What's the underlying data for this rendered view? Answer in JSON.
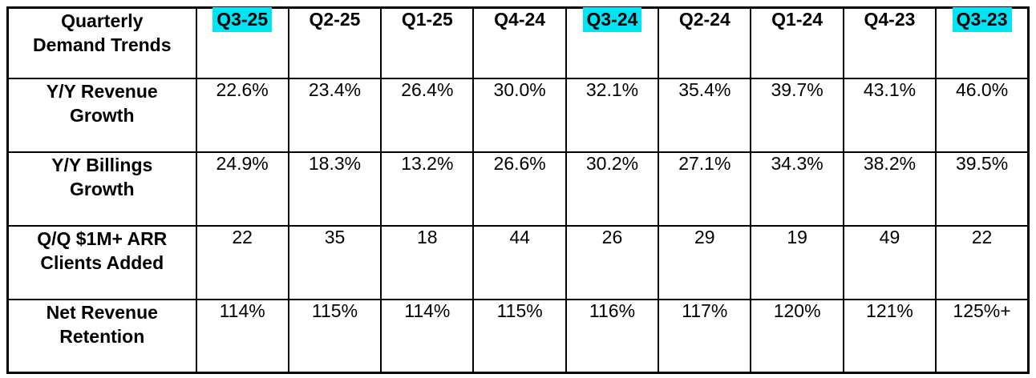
{
  "page": {
    "background": "#ffffff"
  },
  "highlight_color": "#00e4f4",
  "table": {
    "corner_label": "Quarterly\nDemand Trends",
    "columns": [
      {
        "label": "Q3-25",
        "highlighted": true
      },
      {
        "label": "Q2-25",
        "highlighted": false
      },
      {
        "label": "Q1-25",
        "highlighted": false
      },
      {
        "label": "Q4-24",
        "highlighted": false
      },
      {
        "label": "Q3-24",
        "highlighted": true
      },
      {
        "label": "Q2-24",
        "highlighted": false
      },
      {
        "label": "Q1-24",
        "highlighted": false
      },
      {
        "label": "Q4-23",
        "highlighted": false
      },
      {
        "label": "Q3-23",
        "highlighted": true
      }
    ],
    "rows": [
      {
        "label": "Y/Y Revenue\nGrowth",
        "values": [
          "22.6%",
          "23.4%",
          "26.4%",
          "30.0%",
          "32.1%",
          "35.4%",
          "39.7%",
          "43.1%",
          "46.0%"
        ]
      },
      {
        "label": "Y/Y Billings\nGrowth",
        "values": [
          "24.9%",
          "18.3%",
          "13.2%",
          "26.6%",
          "30.2%",
          "27.1%",
          "34.3%",
          "38.2%",
          "39.5%"
        ]
      },
      {
        "label": "Q/Q $1M+ ARR\nClients Added",
        "values": [
          "22",
          "35",
          "18",
          "44",
          "26",
          "29",
          "19",
          "49",
          "22"
        ]
      },
      {
        "label": "Net Revenue\nRetention",
        "values": [
          "114%",
          "115%",
          "114%",
          "115%",
          "116%",
          "117%",
          "120%",
          "121%",
          "125%+"
        ]
      }
    ]
  },
  "chart_data": {
    "type": "table",
    "title": "Quarterly Demand Trends",
    "categories": [
      "Q3-25",
      "Q2-25",
      "Q1-25",
      "Q4-24",
      "Q3-24",
      "Q2-24",
      "Q1-24",
      "Q4-23",
      "Q3-23"
    ],
    "highlighted_categories": [
      "Q3-25",
      "Q3-24",
      "Q3-23"
    ],
    "series": [
      {
        "name": "Y/Y Revenue Growth",
        "values": [
          "22.6%",
          "23.4%",
          "26.4%",
          "30.0%",
          "32.1%",
          "35.4%",
          "39.7%",
          "43.1%",
          "46.0%"
        ]
      },
      {
        "name": "Y/Y Billings Growth",
        "values": [
          "24.9%",
          "18.3%",
          "13.2%",
          "26.6%",
          "30.2%",
          "27.1%",
          "34.3%",
          "38.2%",
          "39.5%"
        ]
      },
      {
        "name": "Q/Q $1M+ ARR Clients Added",
        "values": [
          22,
          35,
          18,
          44,
          26,
          29,
          19,
          49,
          22
        ]
      },
      {
        "name": "Net Revenue Retention",
        "values": [
          "114%",
          "115%",
          "114%",
          "115%",
          "116%",
          "117%",
          "120%",
          "121%",
          "125%+"
        ]
      }
    ],
    "layout": {
      "grid": "all-borders",
      "header_highlight_color": "#00e4f4"
    }
  }
}
